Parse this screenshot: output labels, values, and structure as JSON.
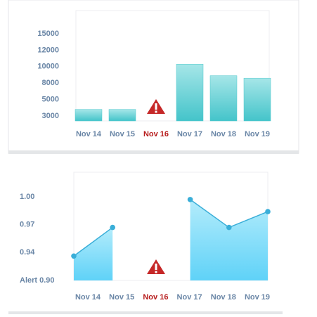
{
  "chart_data": [
    {
      "type": "bar",
      "categories": [
        "Nov 14",
        "Nov 15",
        "Nov 16",
        "Nov 17",
        "Nov 18",
        "Nov 19"
      ],
      "values": [
        3800,
        3800,
        null,
        10300,
        8900,
        8600
      ],
      "color": "#4fc8cc",
      "missing_color": "#b71c1c",
      "ylim": [
        2400,
        19000
      ],
      "yticks": [
        3000,
        5000,
        8000,
        10000,
        12000,
        15000
      ]
    },
    {
      "type": "area",
      "categories": [
        "Nov 14",
        "Nov 15",
        "Nov 16",
        "Nov 17",
        "Nov 18",
        "Nov 19"
      ],
      "values": [
        0.935,
        0.967,
        null,
        0.997,
        0.967,
        0.984
      ],
      "color": "#3aaed8",
      "missing_color": "#b71c1c",
      "ylim": [
        0.9,
        1.026
      ],
      "yticks": [
        {
          "value": 0.9,
          "label": "Alert 0.90"
        },
        0.94,
        0.97,
        {
          "value": 1.0,
          "label": "1.00"
        }
      ]
    }
  ]
}
